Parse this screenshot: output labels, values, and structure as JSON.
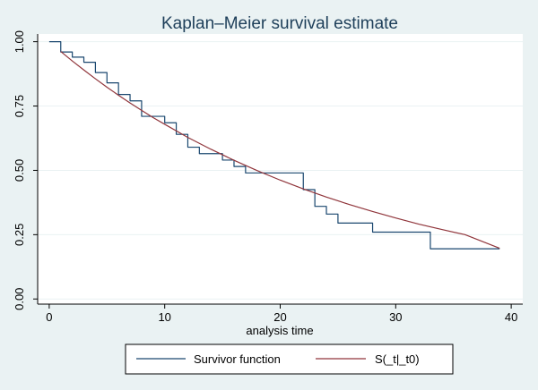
{
  "chart_data": {
    "type": "line",
    "title": "Kaplan–Meier survival estimate",
    "xlabel": "analysis time",
    "ylabel": "",
    "xlim": [
      -1,
      41
    ],
    "ylim": [
      -0.02,
      1.03
    ],
    "x_ticks": [
      0,
      10,
      20,
      30,
      40
    ],
    "y_ticks": [
      0.0,
      0.25,
      0.5,
      0.75,
      1.0
    ],
    "x_tick_labels": [
      "0",
      "10",
      "20",
      "30",
      "40"
    ],
    "y_tick_labels": [
      "0.00",
      "0.25",
      "0.50",
      "0.75",
      "1.00"
    ],
    "grid": "horizontal",
    "legend_position": "bottom",
    "series": [
      {
        "name": "Survivor function",
        "style": "step",
        "color": "#1a476f",
        "x": [
          0,
          1,
          2,
          3,
          4,
          5,
          6,
          7,
          8,
          10,
          11,
          12,
          13,
          15,
          16,
          17,
          22,
          23,
          24,
          25,
          28,
          33,
          39
        ],
        "y": [
          1.0,
          0.96,
          0.94,
          0.92,
          0.88,
          0.84,
          0.795,
          0.77,
          0.71,
          0.685,
          0.64,
          0.59,
          0.565,
          0.54,
          0.515,
          0.49,
          0.425,
          0.36,
          0.33,
          0.295,
          0.26,
          0.195,
          0.195
        ]
      },
      {
        "name": "S(_t|_t0)",
        "style": "smooth",
        "color": "#90353b",
        "x": [
          1,
          2,
          3,
          4,
          5,
          6,
          7,
          8,
          9,
          10,
          12,
          14,
          16,
          18,
          20,
          22,
          24,
          26,
          28,
          30,
          32,
          34,
          36,
          39
        ],
        "y": [
          0.962,
          0.925,
          0.89,
          0.856,
          0.823,
          0.792,
          0.762,
          0.733,
          0.705,
          0.679,
          0.628,
          0.582,
          0.539,
          0.499,
          0.462,
          0.428,
          0.396,
          0.367,
          0.34,
          0.315,
          0.291,
          0.27,
          0.25,
          0.197
        ]
      }
    ]
  },
  "colors": {
    "background": "#eaf2f3",
    "plot_area": "#ffffff",
    "title": "#1e3f5a",
    "grid": "#eaf2f3",
    "axis": "#000000"
  }
}
